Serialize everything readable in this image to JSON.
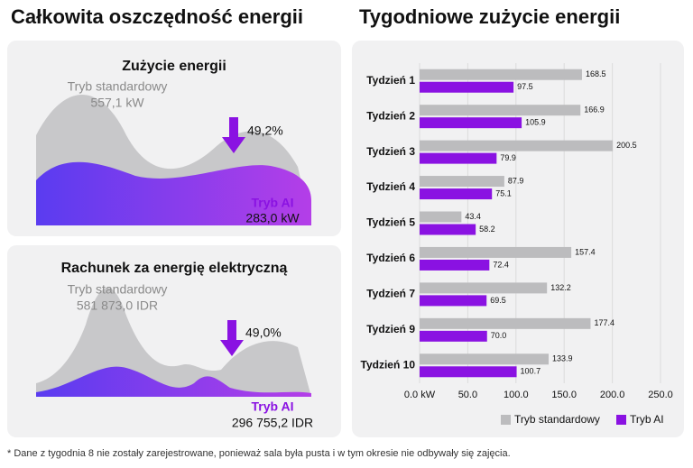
{
  "left_title": "Całkowita oszczędność energii",
  "panels": [
    {
      "title": "Zużycie energii",
      "standard_label": "Tryb standardowy",
      "standard_value": "557,1 kW",
      "change": "49,2%",
      "ai_label": "Tryb AI",
      "ai_value": "283,0 kW"
    },
    {
      "title": "Rachunek za energię elektryczną",
      "standard_label": "Tryb standardowy",
      "standard_value": "581 873,0 IDR",
      "change": "49,0%",
      "ai_label": "Tryb AI",
      "ai_value": "296 755,2 IDR"
    }
  ],
  "chart_data": {
    "type": "bar",
    "orientation": "horizontal",
    "title": "Tygodniowe zużycie energii",
    "categories": [
      "Tydzień 1",
      "Tydzień 2",
      "Tydzień 3",
      "Tydzień 4",
      "Tydzień 5",
      "Tydzień 6",
      "Tydzień 7",
      "Tydzień 9",
      "Tydzień 10"
    ],
    "series": [
      {
        "name": "Tryb standardowy",
        "color": "#bcbcbe",
        "values": [
          168.5,
          166.9,
          200.5,
          87.9,
          43.4,
          157.4,
          132.2,
          177.4,
          133.9
        ]
      },
      {
        "name": "Tryb AI",
        "color": "#8a12e2",
        "values": [
          97.5,
          105.9,
          79.9,
          75.1,
          58.2,
          72.4,
          69.5,
          70.0,
          100.7
        ],
        "value_labels": [
          "97.5",
          "105.9",
          "79.9",
          "75.1",
          "58.2",
          "72.4",
          "69.5",
          "70.0",
          "100.7"
        ]
      }
    ],
    "xlim": [
      0,
      250
    ],
    "xticks": [
      {
        "value": 0,
        "label": "0.0 kW"
      },
      {
        "value": 50,
        "label": "50.0"
      },
      {
        "value": 100,
        "label": "100.0"
      },
      {
        "value": 150,
        "label": "150.0"
      },
      {
        "value": 200,
        "label": "200.0"
      },
      {
        "value": 250,
        "label": "250.0"
      }
    ],
    "grid": true,
    "legend": "bottom"
  },
  "footnote": "* Dane z tygodnia 8 nie zostały zarejestrowane, ponieważ sala była pusta i w tym okresie nie odbywały się zajęcia."
}
